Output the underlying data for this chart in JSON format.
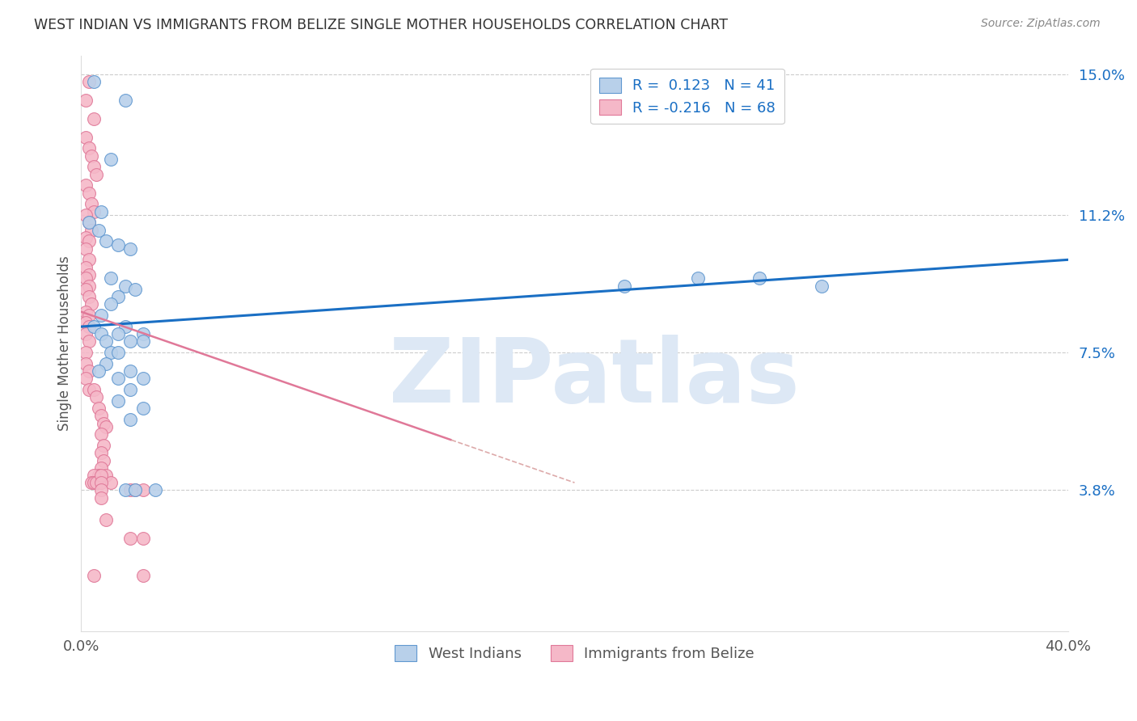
{
  "title": "WEST INDIAN VS IMMIGRANTS FROM BELIZE SINGLE MOTHER HOUSEHOLDS CORRELATION CHART",
  "source": "Source: ZipAtlas.com",
  "ylabel": "Single Mother Households",
  "xlim": [
    0.0,
    0.4
  ],
  "ylim": [
    0.0,
    0.155
  ],
  "ytick_positions": [
    0.038,
    0.075,
    0.112,
    0.15
  ],
  "ytick_labels": [
    "3.8%",
    "7.5%",
    "11.2%",
    "15.0%"
  ],
  "blue_R": 0.123,
  "blue_N": 41,
  "pink_R": -0.216,
  "pink_N": 68,
  "blue_fill": "#b8d0ea",
  "pink_fill": "#f5b8c8",
  "blue_edge": "#6098d0",
  "pink_edge": "#e07898",
  "blue_line_color": "#1a6fc4",
  "pink_line_color": "#e07898",
  "watermark": "ZIPatlas",
  "watermark_blue": "#dde8f5",
  "background_color": "#ffffff",
  "grid_color": "#cccccc",
  "blue_scatter_x": [
    0.005,
    0.018,
    0.012,
    0.008,
    0.003,
    0.007,
    0.01,
    0.015,
    0.02,
    0.012,
    0.018,
    0.022,
    0.015,
    0.012,
    0.008,
    0.005,
    0.018,
    0.025,
    0.015,
    0.008,
    0.01,
    0.02,
    0.025,
    0.012,
    0.015,
    0.01,
    0.007,
    0.02,
    0.015,
    0.025,
    0.02,
    0.015,
    0.025,
    0.02,
    0.275,
    0.3,
    0.22,
    0.25,
    0.018,
    0.022,
    0.03
  ],
  "blue_scatter_y": [
    0.148,
    0.143,
    0.127,
    0.113,
    0.11,
    0.108,
    0.105,
    0.104,
    0.103,
    0.095,
    0.093,
    0.092,
    0.09,
    0.088,
    0.085,
    0.082,
    0.082,
    0.08,
    0.08,
    0.08,
    0.078,
    0.078,
    0.078,
    0.075,
    0.075,
    0.072,
    0.07,
    0.07,
    0.068,
    0.068,
    0.065,
    0.062,
    0.06,
    0.057,
    0.095,
    0.093,
    0.093,
    0.095,
    0.038,
    0.038,
    0.038
  ],
  "pink_scatter_x": [
    0.003,
    0.002,
    0.005,
    0.002,
    0.003,
    0.004,
    0.005,
    0.006,
    0.002,
    0.003,
    0.004,
    0.005,
    0.002,
    0.003,
    0.004,
    0.002,
    0.003,
    0.002,
    0.003,
    0.002,
    0.003,
    0.002,
    0.003,
    0.002,
    0.003,
    0.004,
    0.002,
    0.003,
    0.002,
    0.003,
    0.002,
    0.003,
    0.002,
    0.002,
    0.003,
    0.002,
    0.003,
    0.005,
    0.006,
    0.007,
    0.008,
    0.009,
    0.01,
    0.008,
    0.009,
    0.008,
    0.009,
    0.008,
    0.007,
    0.01,
    0.012,
    0.02,
    0.022,
    0.025,
    0.007,
    0.005,
    0.004,
    0.005,
    0.006,
    0.02,
    0.025,
    0.025,
    0.008,
    0.008,
    0.008,
    0.008,
    0.01,
    0.005
  ],
  "pink_scatter_y": [
    0.148,
    0.143,
    0.138,
    0.133,
    0.13,
    0.128,
    0.125,
    0.123,
    0.12,
    0.118,
    0.115,
    0.113,
    0.112,
    0.11,
    0.108,
    0.106,
    0.105,
    0.103,
    0.1,
    0.098,
    0.096,
    0.095,
    0.093,
    0.092,
    0.09,
    0.088,
    0.086,
    0.085,
    0.083,
    0.082,
    0.08,
    0.078,
    0.075,
    0.072,
    0.07,
    0.068,
    0.065,
    0.065,
    0.063,
    0.06,
    0.058,
    0.056,
    0.055,
    0.053,
    0.05,
    0.048,
    0.046,
    0.044,
    0.042,
    0.042,
    0.04,
    0.038,
    0.038,
    0.038,
    0.04,
    0.042,
    0.04,
    0.04,
    0.04,
    0.025,
    0.025,
    0.015,
    0.042,
    0.04,
    0.038,
    0.036,
    0.03,
    0.015
  ],
  "blue_line_x0": 0.0,
  "blue_line_y0": 0.082,
  "blue_line_x1": 0.4,
  "blue_line_y1": 0.1,
  "pink_line_x0": 0.0,
  "pink_line_y0": 0.086,
  "pink_line_x1": 0.2,
  "pink_line_y1": 0.04
}
